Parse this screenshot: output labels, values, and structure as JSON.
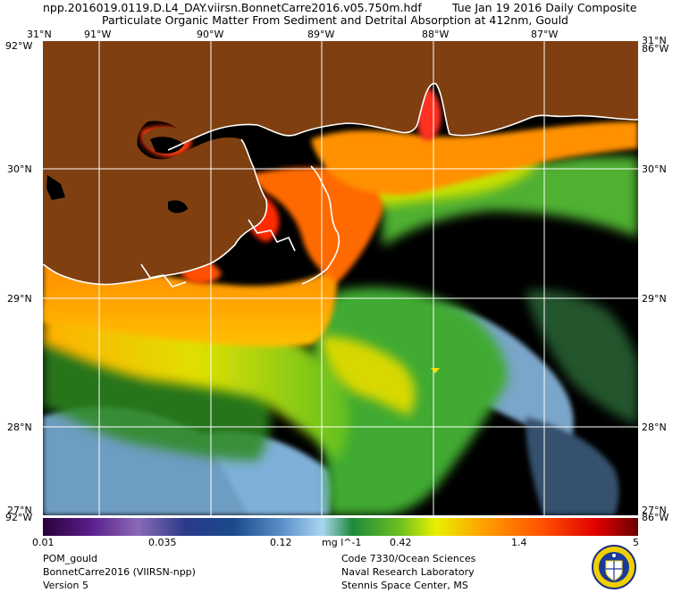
{
  "header": {
    "filename": "npp.2016019.0119.D.L4_DAY.viirsn.BonnetCarre2016.v05.750m.hdf",
    "date": "Tue Jan 19 2016 Daily Composite",
    "product": "Particulate Organic Matter From Sediment and Detrital Absorption at 412nm, Gould"
  },
  "map": {
    "lon_labels": [
      "91°W",
      "90°W",
      "89°W",
      "88°W",
      "87°W"
    ],
    "lat_labels": [
      "30°N",
      "29°N",
      "28°N"
    ],
    "corner_labels": {
      "top_left": "31°N",
      "top_left_lon": "92°W",
      "top_right": "31°N",
      "top_right_lon": "86°W",
      "bottom_left": "27°N",
      "bottom_left_lon": "92°W",
      "bottom_right": "27°N",
      "bottom_right_lon": "86°W"
    },
    "land_color": "#7f3f10",
    "nodata_color": "#000000"
  },
  "colorbar": {
    "tick_labels": [
      "0.01",
      "0.035",
      "0.12",
      "0.42",
      "1.4",
      "5"
    ],
    "units": "mg l^-1"
  },
  "footer": {
    "left": [
      "POM_gould",
      "BonnetCarre2016 (VIIRSN-npp)",
      "Version 5"
    ],
    "right": [
      "Code 7330/Ocean Sciences",
      "Naval Research Laboratory",
      "Stennis Space Center, MS"
    ]
  },
  "icons": {
    "seal": "nrl-seal-icon"
  }
}
